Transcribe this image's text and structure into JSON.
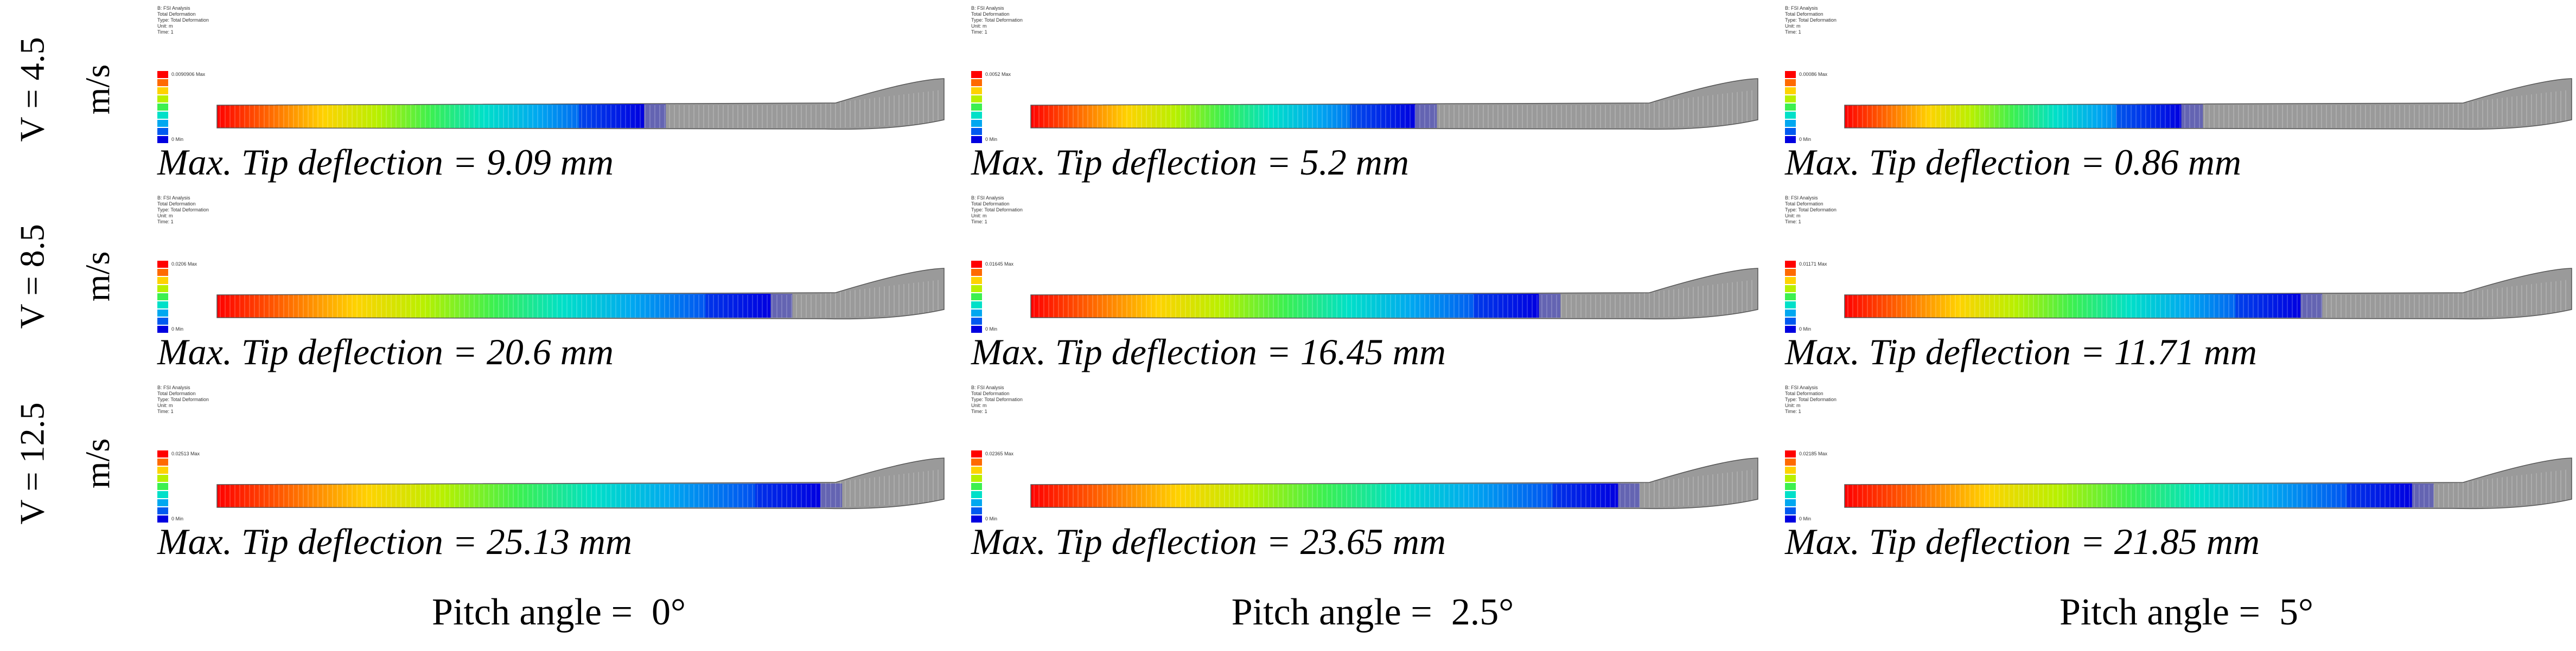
{
  "rows": [
    {
      "label_top": "V = 4.5",
      "label_bottom": "m/s"
    },
    {
      "label_top": "V = 8.5",
      "label_bottom": "m/s"
    },
    {
      "label_top": "V = 12.5",
      "label_bottom": "m/s"
    }
  ],
  "columns": [
    {
      "label": "Pitch angle =  0°"
    },
    {
      "label": "Pitch angle =  2.5°"
    },
    {
      "label": "Pitch angle =  5°"
    }
  ],
  "panels": [
    {
      "row": 0,
      "col": 0,
      "caption": "Max. Tip deflection = 9.09 mm",
      "max_tip_deflection_mm": 9.09,
      "header": [
        "B: FSI Analysis",
        "Total Deformation",
        "Type: Total Deformation",
        "Unit: m",
        "Time: 1"
      ],
      "legend_max": "0.0090906 Max",
      "legend_min": "0 Min"
    },
    {
      "row": 0,
      "col": 1,
      "caption": "Max. Tip deflection = 5.2 mm",
      "max_tip_deflection_mm": 5.2,
      "header": [
        "B: FSI Analysis",
        "Total Deformation",
        "Type: Total Deformation",
        "Unit: m",
        "Time: 1"
      ],
      "legend_max": "0.0052 Max",
      "legend_min": "0 Min"
    },
    {
      "row": 0,
      "col": 2,
      "caption": "Max. Tip deflection = 0.86 mm",
      "max_tip_deflection_mm": 0.86,
      "header": [
        "B: FSI Analysis",
        "Total Deformation",
        "Type: Total Deformation",
        "Unit: m",
        "Time: 1"
      ],
      "legend_max": "0.00086 Max",
      "legend_min": "0 Min"
    },
    {
      "row": 1,
      "col": 0,
      "caption": "Max. Tip deflection = 20.6 mm",
      "max_tip_deflection_mm": 20.6,
      "header": [
        "B: FSI Analysis",
        "Total Deformation",
        "Type: Total Deformation",
        "Unit: m",
        "Time: 1"
      ],
      "legend_max": "0.0206 Max",
      "legend_min": "0 Min"
    },
    {
      "row": 1,
      "col": 1,
      "caption": "Max. Tip deflection = 16.45 mm",
      "max_tip_deflection_mm": 16.45,
      "header": [
        "B: FSI Analysis",
        "Total Deformation",
        "Type: Total Deformation",
        "Unit: m",
        "Time: 1"
      ],
      "legend_max": "0.01645 Max",
      "legend_min": "0 Min"
    },
    {
      "row": 1,
      "col": 2,
      "caption": "Max. Tip deflection = 11.71 mm",
      "max_tip_deflection_mm": 11.71,
      "header": [
        "B: FSI Analysis",
        "Total Deformation",
        "Type: Total Deformation",
        "Unit: m",
        "Time: 1"
      ],
      "legend_max": "0.01171 Max",
      "legend_min": "0 Min"
    },
    {
      "row": 2,
      "col": 0,
      "caption": "Max. Tip deflection = 25.13 mm",
      "max_tip_deflection_mm": 25.13,
      "header": [
        "B: FSI Analysis",
        "Total Deformation",
        "Type: Total Deformation",
        "Unit: m",
        "Time: 1"
      ],
      "legend_max": "0.02513 Max",
      "legend_min": "0 Min"
    },
    {
      "row": 2,
      "col": 1,
      "caption": "Max. Tip deflection = 23.65 mm",
      "max_tip_deflection_mm": 23.65,
      "header": [
        "B: FSI Analysis",
        "Total Deformation",
        "Type: Total Deformation",
        "Unit: m",
        "Time: 1"
      ],
      "legend_max": "0.02365 Max",
      "legend_min": "0 Min"
    },
    {
      "row": 2,
      "col": 2,
      "caption": "Max. Tip deflection = 21.85 mm",
      "max_tip_deflection_mm": 21.85,
      "header": [
        "B: FSI Analysis",
        "Total Deformation",
        "Type: Total Deformation",
        "Unit: m",
        "Time: 1"
      ],
      "legend_max": "0.02185 Max",
      "legend_min": "0 Min"
    }
  ],
  "contour_colors": [
    "#ff0000",
    "#ff6a00",
    "#ffd200",
    "#b8f000",
    "#3cf050",
    "#00e0c8",
    "#00a8f0",
    "#005af0",
    "#0000e0"
  ],
  "mesh_color": "#9a9a9a"
}
